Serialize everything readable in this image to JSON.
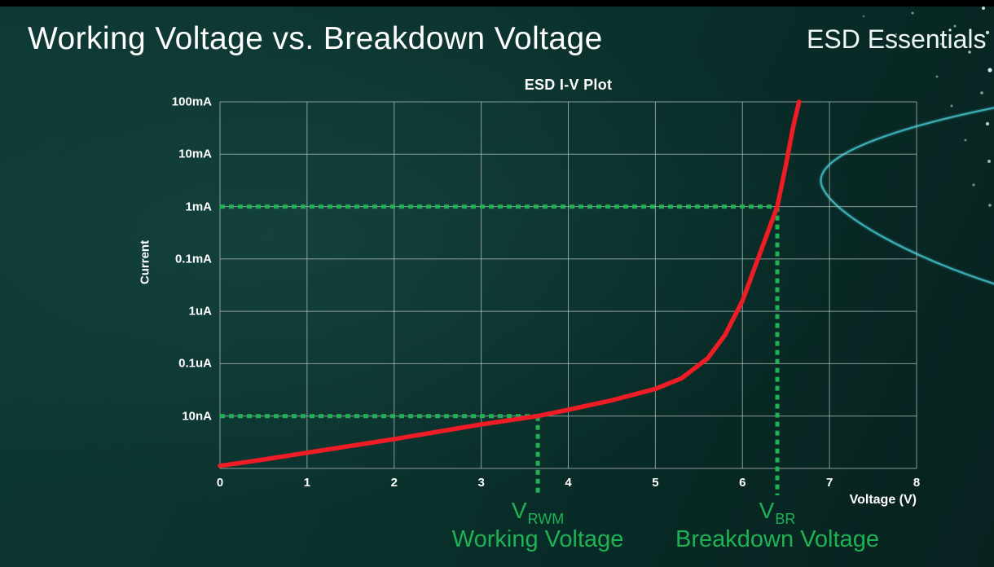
{
  "page": {
    "title": "Working Voltage vs. Breakdown Voltage",
    "brand": "ESD Essentials",
    "background_color": "#0b322e",
    "top_bar_color": "#000000"
  },
  "chart_data": {
    "type": "line",
    "title": "ESD I-V Plot",
    "xlabel": "Voltage (V)",
    "ylabel": "Current",
    "xlim": [
      0,
      8
    ],
    "x_ticks": [
      0,
      1,
      2,
      3,
      4,
      5,
      6,
      7,
      8
    ],
    "y_axis": {
      "scale": "log-decade-rows",
      "rows_bottom_to_top": [
        "",
        "10nA",
        "0.1uA",
        "1uA",
        "0.1mA",
        "1mA",
        "10mA",
        "100mA"
      ]
    },
    "grid": true,
    "legend": "none",
    "colors": {
      "curve": "#ee1c24",
      "marker": "#1eb254",
      "grid": "#b7c2c0",
      "text": "#ffffff"
    },
    "series": [
      {
        "name": "ESD I-V curve",
        "color": "#ee1c24",
        "points_v_row": [
          [
            0,
            0.05
          ],
          [
            0.5,
            0.17
          ],
          [
            1,
            0.3
          ],
          [
            1.5,
            0.43
          ],
          [
            2,
            0.56
          ],
          [
            2.5,
            0.7
          ],
          [
            3,
            0.84
          ],
          [
            3.65,
            1.0
          ],
          [
            4,
            1.12
          ],
          [
            4.5,
            1.3
          ],
          [
            5,
            1.52
          ],
          [
            5.3,
            1.72
          ],
          [
            5.6,
            2.1
          ],
          [
            5.8,
            2.55
          ],
          [
            6.0,
            3.2
          ],
          [
            6.2,
            4.1
          ],
          [
            6.4,
            5.0
          ],
          [
            6.5,
            5.8
          ],
          [
            6.58,
            6.5
          ],
          [
            6.65,
            7.0
          ]
        ]
      }
    ],
    "annotations": [
      {
        "id": "vrwm",
        "symbol": "V",
        "subscript": "RWM",
        "caption": "Working Voltage",
        "voltage": 3.65,
        "current_row": 1,
        "current_label": "10nA",
        "color": "#1eb254"
      },
      {
        "id": "vbr",
        "symbol": "V",
        "subscript": "BR",
        "caption": "Breakdown Voltage",
        "voltage": 6.4,
        "current_row": 5,
        "current_label": "1mA",
        "color": "#1eb254"
      }
    ]
  }
}
